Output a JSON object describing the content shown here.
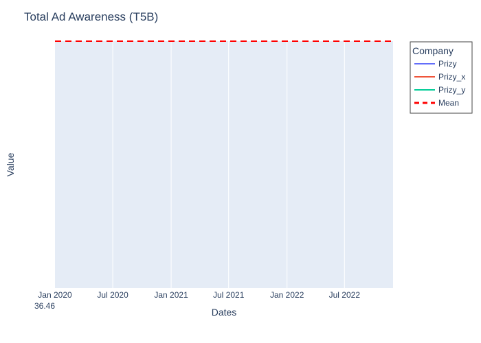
{
  "chart_data": {
    "type": "line",
    "title": "Total Ad Awareness (T5B)",
    "xlabel": "Dates",
    "ylabel": "Value",
    "x_range": [
      "2020-01-01",
      "2022-12-01"
    ],
    "x_ticks": [
      {
        "date": "2020-01-01",
        "label": "Jan 2020",
        "sublabel": "36.46"
      },
      {
        "date": "2020-07-01",
        "label": "Jul 2020",
        "sublabel": ""
      },
      {
        "date": "2021-01-01",
        "label": "Jan 2021",
        "sublabel": ""
      },
      {
        "date": "2021-07-01",
        "label": "Jul 2021",
        "sublabel": ""
      },
      {
        "date": "2022-01-01",
        "label": "Jan 2022",
        "sublabel": ""
      },
      {
        "date": "2022-07-01",
        "label": "Jul 2022",
        "sublabel": ""
      }
    ],
    "grid": true,
    "legend": {
      "title": "Company",
      "placement": "top-right",
      "entries": [
        {
          "name": "Prizy",
          "color": "#636efa",
          "dash": "solid"
        },
        {
          "name": "Prizy_x",
          "color": "#ef553b",
          "dash": "solid"
        },
        {
          "name": "Prizy_y",
          "color": "#00cc96",
          "dash": "solid"
        },
        {
          "name": "Mean",
          "color": "#ff0000",
          "dash": "dash"
        }
      ]
    },
    "series": [
      {
        "name": "Prizy",
        "values": []
      },
      {
        "name": "Prizy_x",
        "values": []
      },
      {
        "name": "Prizy_y",
        "values": []
      },
      {
        "name": "Mean",
        "x": [
          "2020-01-01",
          "2022-12-01"
        ],
        "values": [
          36.46,
          36.46
        ]
      }
    ]
  }
}
